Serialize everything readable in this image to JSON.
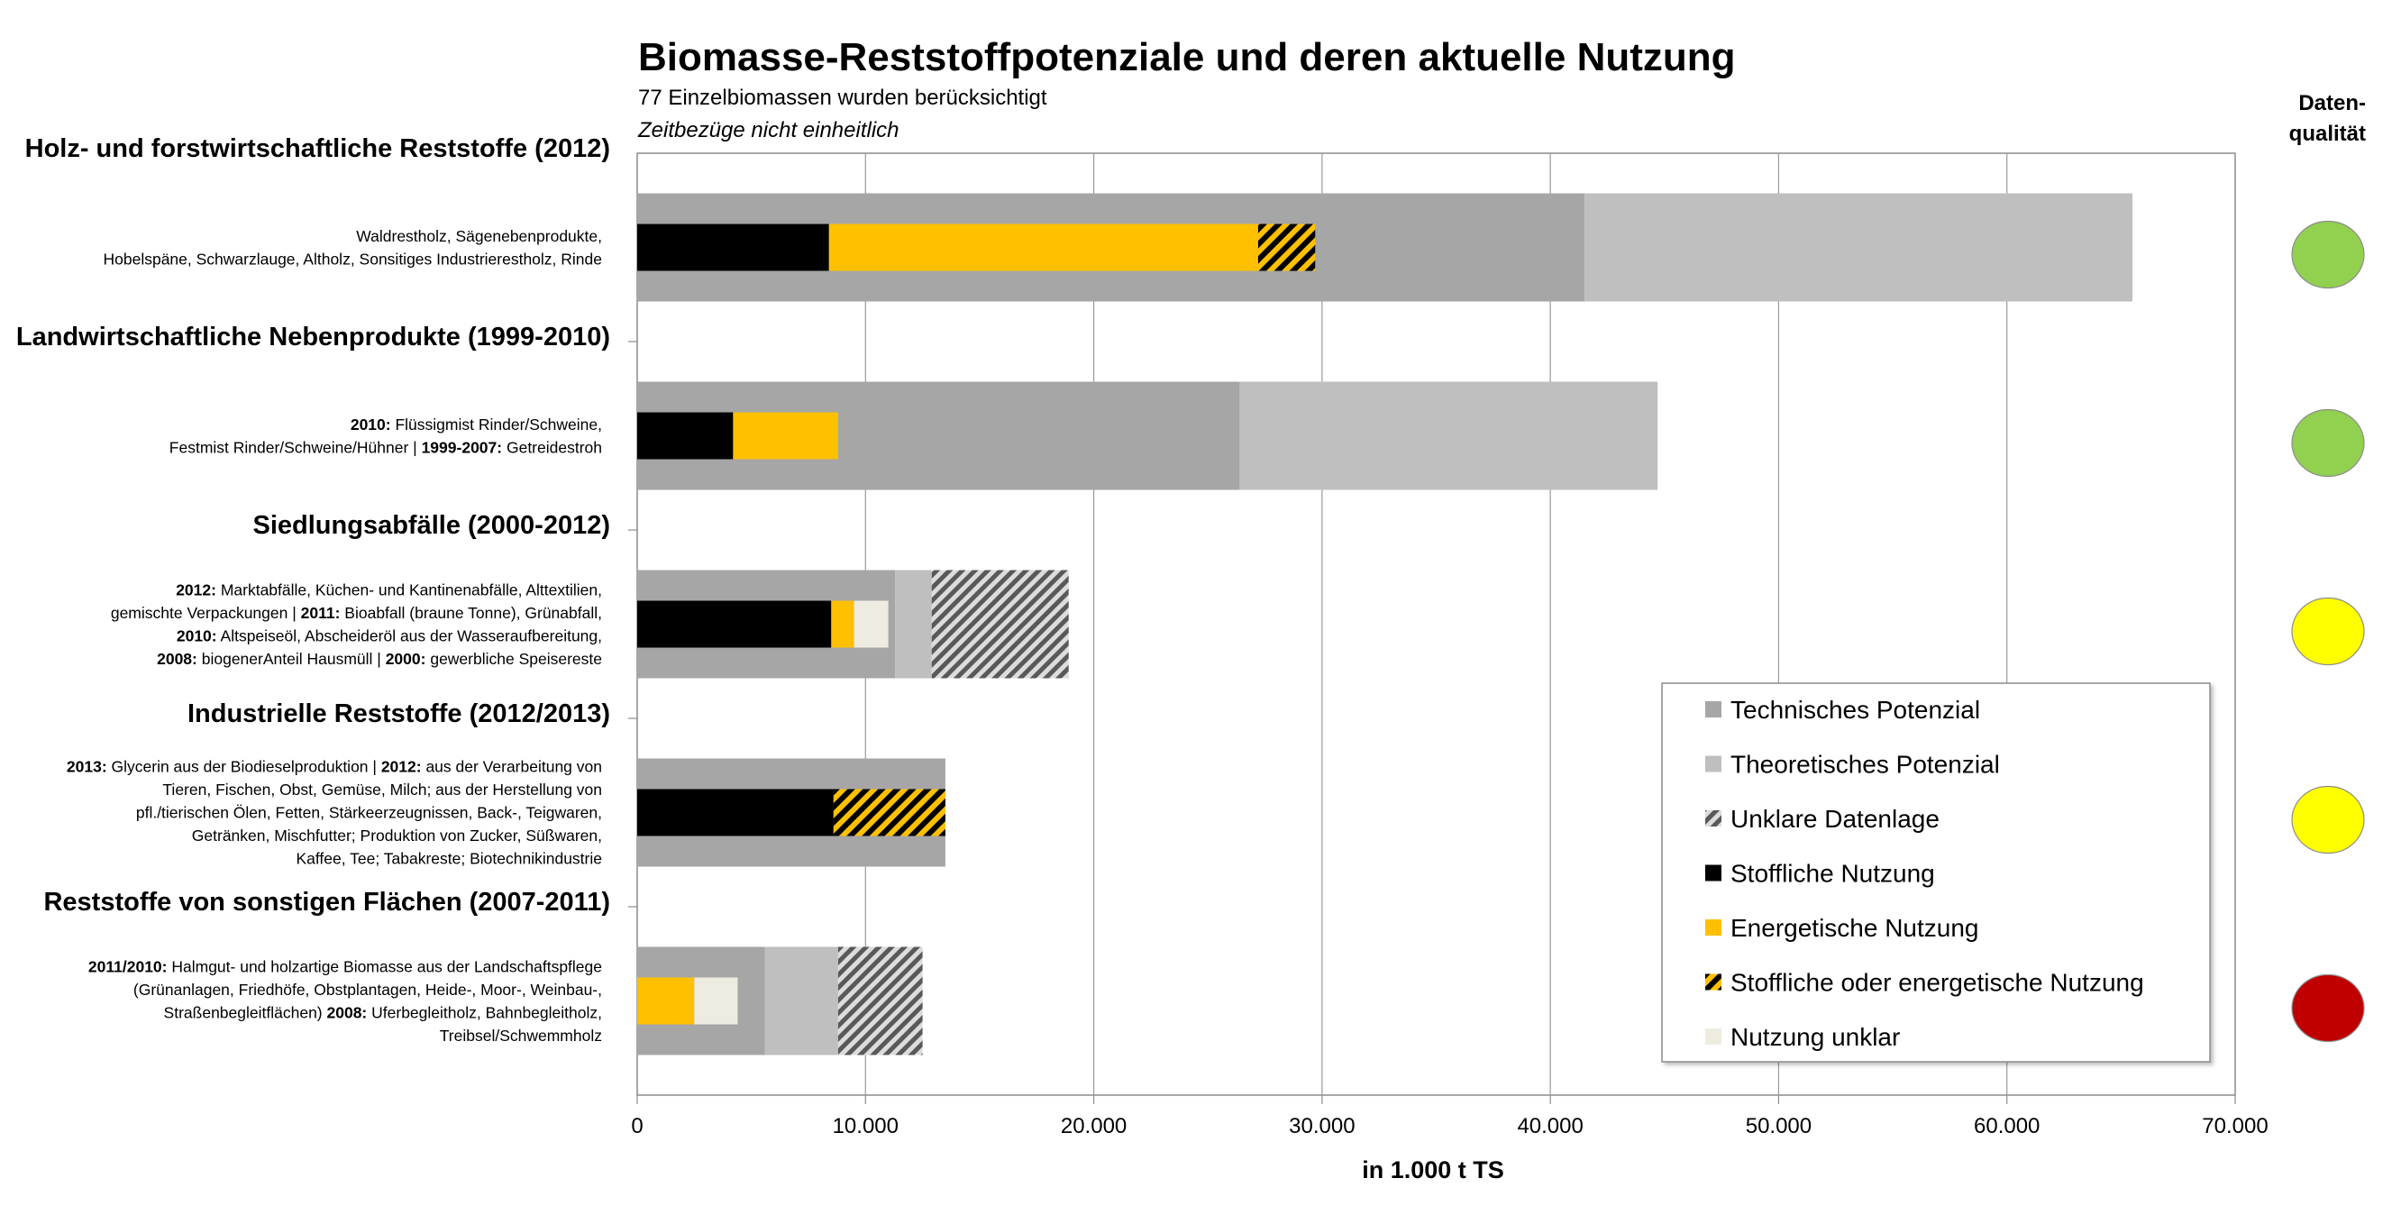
{
  "chart_data": {
    "type": "bar",
    "orientation": "horizontal",
    "title": "Biomasse-Reststoffpotenziale und deren aktuelle Nutzung",
    "subtitle": "77 Einzelbiomassen wurden berücksichtigt",
    "subtitle2": "Zeitbezüge nicht einheitlich",
    "xlabel": "in 1.000 t TS",
    "xlim": [
      0,
      70000
    ],
    "xticks": [
      0,
      10000,
      20000,
      30000,
      40000,
      50000,
      60000,
      70000
    ],
    "xtick_labels": [
      "0",
      "10.000",
      "20.000",
      "30.000",
      "40.000",
      "50.000",
      "60.000",
      "70.000"
    ],
    "grid": "vertical",
    "legend_position": "bottom-right",
    "data_quality_title": [
      "Daten-",
      "qualität"
    ],
    "colors": {
      "technisch": "#a6a6a6",
      "theoretisch": "#bfbfbf",
      "stofflich": "#000000",
      "energetisch": "#ffc000",
      "stoff_oder_energ_bg": "#ffc000",
      "stoff_oder_energ_hatch": "#000000",
      "unklar_datenlage_bg": "#dcdcdc",
      "unklar_datenlage_hatch": "#595959",
      "nutzung_unklar": "#eeece1",
      "dq_green": "#92d050",
      "dq_yellow": "#ffff00",
      "dq_red": "#c00000"
    },
    "legend": [
      {
        "key": "technisch",
        "label": "Technisches Potenzial"
      },
      {
        "key": "theoretisch",
        "label": "Theoretisches Potenzial"
      },
      {
        "key": "unklar_datenlage",
        "label": "Unklare Datenlage"
      },
      {
        "key": "stofflich",
        "label": "Stoffliche Nutzung"
      },
      {
        "key": "energetisch",
        "label": "Energetische Nutzung"
      },
      {
        "key": "stoff_oder_energ",
        "label": "Stoffliche oder energetische Nutzung"
      },
      {
        "key": "nutzung_unklar",
        "label": "Nutzung unklar"
      }
    ],
    "categories": [
      {
        "title": "Holz- und forstwirtschaftliche Reststoffe (2012)",
        "description": [
          [
            {
              "t": "Waldrestholz, Sägenebenprodukte,",
              "b": false
            }
          ],
          [
            {
              "t": "Hobelspäne, Schwarzlauge, Altholz, Sonsitiges Industrierestholz, Rinde",
              "b": false
            }
          ]
        ],
        "data_quality": "green",
        "potential_segments": [
          {
            "type": "technisch",
            "start": 0,
            "end": 41500
          },
          {
            "type": "theoretisch",
            "start": 41500,
            "end": 65500
          }
        ],
        "usage_segments": [
          {
            "type": "stofflich",
            "start": 0,
            "end": 8400
          },
          {
            "type": "energetisch",
            "start": 8400,
            "end": 27200
          },
          {
            "type": "stoff_oder_energ",
            "start": 27200,
            "end": 29700
          }
        ]
      },
      {
        "title": "Landwirtschaftliche Nebenprodukte (1999-2010)",
        "description": [
          [
            {
              "t": "2010:",
              "b": true
            },
            {
              "t": " Flüssigmist Rinder/Schweine,",
              "b": false
            }
          ],
          [
            {
              "t": "Festmist Rinder/Schweine/Hühner | ",
              "b": false
            },
            {
              "t": "1999-2007:",
              "b": true
            },
            {
              "t": " Getreidestroh",
              "b": false
            }
          ]
        ],
        "data_quality": "green",
        "potential_segments": [
          {
            "type": "technisch",
            "start": 0,
            "end": 26400
          },
          {
            "type": "theoretisch",
            "start": 26400,
            "end": 44700
          }
        ],
        "usage_segments": [
          {
            "type": "stofflich",
            "start": 0,
            "end": 4200
          },
          {
            "type": "energetisch",
            "start": 4200,
            "end": 8800
          }
        ]
      },
      {
        "title": "Siedlungsabfälle (2000-2012)",
        "description": [
          [
            {
              "t": "2012:",
              "b": true
            },
            {
              "t": " Marktabfälle, Küchen- und Kantinenabfälle, Alttextilien,",
              "b": false
            }
          ],
          [
            {
              "t": "gemischte Verpackungen | ",
              "b": false
            },
            {
              "t": "2011:",
              "b": true
            },
            {
              "t": " Bioabfall (braune Tonne), Grünabfall,",
              "b": false
            }
          ],
          [
            {
              "t": "2010:",
              "b": true
            },
            {
              "t": " Altspeiseöl, Abscheideröl aus der Wasseraufbereitung,",
              "b": false
            }
          ],
          [
            {
              "t": "2008:",
              "b": true
            },
            {
              "t": " biogenerAnteil Hausmüll | ",
              "b": false
            },
            {
              "t": "2000:",
              "b": true
            },
            {
              "t": " gewerbliche Speisereste",
              "b": false
            }
          ]
        ],
        "data_quality": "yellow",
        "potential_segments": [
          {
            "type": "technisch",
            "start": 0,
            "end": 11300
          },
          {
            "type": "theoretisch",
            "start": 11300,
            "end": 12900
          },
          {
            "type": "unklar_datenlage",
            "start": 12900,
            "end": 18900
          }
        ],
        "usage_segments": [
          {
            "type": "stofflich",
            "start": 0,
            "end": 8500
          },
          {
            "type": "energetisch",
            "start": 8500,
            "end": 9500
          },
          {
            "type": "nutzung_unklar",
            "start": 9500,
            "end": 11000
          }
        ]
      },
      {
        "title": "Industrielle Reststoffe (2012/2013)",
        "description": [
          [
            {
              "t": "2013:",
              "b": true
            },
            {
              "t": " Glycerin aus der Biodieselproduktion | ",
              "b": false
            },
            {
              "t": "2012:",
              "b": true
            },
            {
              "t": " aus der Verarbeitung von",
              "b": false
            }
          ],
          [
            {
              "t": "Tieren, Fischen, Obst, Gemüse, Milch; aus der Herstellung von",
              "b": false
            }
          ],
          [
            {
              "t": "pfl./tierischen Ölen, Fetten, Stärkeerzeugnissen, Back-, Teigwaren,",
              "b": false
            }
          ],
          [
            {
              "t": "Getränken, Mischfutter; Produktion von Zucker, Süßwaren,",
              "b": false
            }
          ],
          [
            {
              "t": "Kaffee, Tee; Tabakreste; Biotechnikindustrie",
              "b": false
            }
          ]
        ],
        "data_quality": "yellow",
        "potential_segments": [
          {
            "type": "technisch",
            "start": 0,
            "end": 13500
          }
        ],
        "usage_segments": [
          {
            "type": "stofflich",
            "start": 0,
            "end": 8600
          },
          {
            "type": "stoff_oder_energ",
            "start": 8600,
            "end": 13500
          }
        ]
      },
      {
        "title": "Reststoffe von sonstigen Flächen (2007-2011)",
        "description": [
          [
            {
              "t": "2011/2010:",
              "b": true
            },
            {
              "t": " Halmgut- und holzartige Biomasse aus der Landschaftspflege",
              "b": false
            }
          ],
          [
            {
              "t": "(Grünanlagen, Friedhöfe, Obstplantagen, Heide-, Moor-, Weinbau-,",
              "b": false
            }
          ],
          [
            {
              "t": "Straßenbegleitflächen) ",
              "b": false
            },
            {
              "t": "2008:",
              "b": true
            },
            {
              "t": " Uferbegleitholz, Bahnbegleitholz,",
              "b": false
            }
          ],
          [
            {
              "t": "Treibsel/Schwemmholz",
              "b": false
            }
          ]
        ],
        "data_quality": "red",
        "potential_segments": [
          {
            "type": "technisch",
            "start": 0,
            "end": 5600
          },
          {
            "type": "theoretisch",
            "start": 5600,
            "end": 8800
          },
          {
            "type": "unklar_datenlage",
            "start": 8800,
            "end": 12500
          }
        ],
        "usage_segments": [
          {
            "type": "energetisch",
            "start": 0,
            "end": 2500
          },
          {
            "type": "nutzung_unklar",
            "start": 2500,
            "end": 4400
          }
        ]
      }
    ]
  }
}
